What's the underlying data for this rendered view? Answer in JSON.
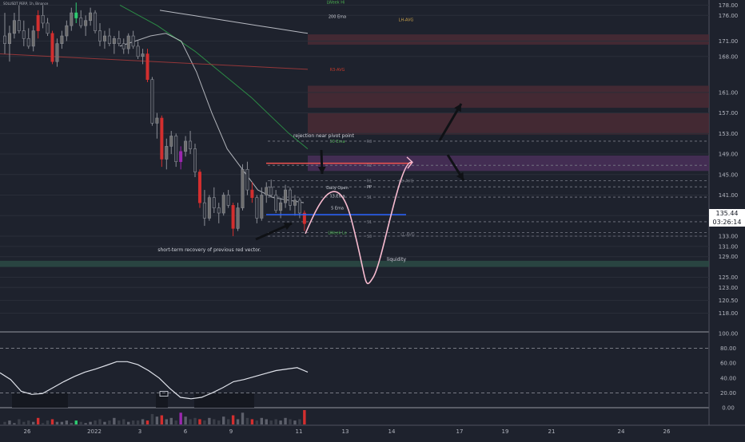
{
  "header": {
    "symbol_line": "SOLUSDT PERP, 1h, Binance"
  },
  "price_tag": {
    "price": "135.44",
    "countdown": "03:26:14"
  },
  "colors": {
    "background": "#1e222d",
    "bull_candle": "#6e6e6e",
    "bear_candle": "#d32f2f",
    "vector_green": "#2ecc71",
    "vector_purple": "#9c27b0",
    "ema200": "#d1d4dc",
    "ema50": "#2e9e4a",
    "ema5_line": "#2962ff",
    "pivot_line": "#ef5350",
    "projection": "#f8bbd0",
    "liquidity_zone": "#2c4a45",
    "resistance_zone": "#4a2a35",
    "pivot_zone": "#4a2f5a"
  },
  "chart_data": [
    {
      "type": "candlestick",
      "title": "SOLUSDT PERP, 1h, Binance",
      "ylim": [
        114.5,
        179
      ],
      "price_ticks": [
        "178.00",
        "176.00",
        "171.00",
        "168.00",
        "161.00",
        "157.00",
        "153.00",
        "149.00",
        "145.00",
        "141.00",
        "137.00",
        "133.00",
        "131.00",
        "129.00",
        "125.00",
        "123.00",
        "120.50",
        "118.00"
      ],
      "date_ticks": [
        "26",
        "2022",
        "3",
        "6",
        "9",
        "11",
        "13",
        "14",
        "17",
        "19",
        "21",
        "24",
        "26"
      ],
      "last_price": 135.44,
      "candles": [
        [
          172,
          176.5,
          168.5,
          170.5
        ],
        [
          170.5,
          174,
          167,
          172.5
        ],
        [
          172.5,
          176.5,
          171.5,
          175
        ],
        [
          175,
          178,
          172.5,
          173
        ],
        [
          173,
          175,
          170,
          171.5
        ],
        [
          171.5,
          173.5,
          169.5,
          170
        ],
        [
          170,
          174,
          169,
          173
        ],
        [
          173,
          177,
          171.5,
          176
        ],
        [
          176,
          178,
          173.5,
          174.5
        ],
        [
          174.5,
          175.5,
          172,
          172.5
        ],
        [
          172.5,
          173,
          166.5,
          167
        ],
        [
          167,
          171.5,
          166,
          170.5
        ],
        [
          170.5,
          173,
          169.5,
          172
        ],
        [
          172,
          175,
          171,
          174
        ],
        [
          174,
          177.5,
          173,
          176.5
        ],
        [
          176.5,
          178.5,
          174.5,
          175.5
        ],
        [
          175.5,
          177,
          173.5,
          174
        ],
        [
          174,
          176,
          172,
          175
        ],
        [
          175,
          177.5,
          174,
          176.5
        ],
        [
          176.5,
          177,
          172.5,
          173
        ],
        [
          173,
          174.5,
          170,
          171
        ],
        [
          171,
          173,
          169.5,
          172
        ],
        [
          172,
          173.5,
          170,
          170.5
        ],
        [
          170.5,
          172,
          168.5,
          171.5
        ],
        [
          171.5,
          173,
          170,
          170.5
        ],
        [
          170.5,
          171.5,
          168.5,
          169.5
        ],
        [
          169.5,
          172.5,
          168.5,
          172
        ],
        [
          172,
          173,
          169.5,
          170
        ],
        [
          170,
          171,
          167.5,
          168
        ],
        [
          168,
          169.5,
          166.5,
          168.5
        ],
        [
          168.5,
          169.5,
          163,
          163.5
        ],
        [
          163.5,
          164,
          154.5,
          155
        ],
        [
          155,
          157,
          152,
          156
        ],
        [
          156,
          156.5,
          146.5,
          148
        ],
        [
          148,
          152,
          146,
          150.5
        ],
        [
          150.5,
          153.5,
          149,
          152.5
        ],
        [
          152.5,
          153,
          146.5,
          147.5
        ],
        [
          147.5,
          150.5,
          146,
          149.5
        ],
        [
          149.5,
          152.5,
          148.5,
          151.5
        ],
        [
          151.5,
          153.5,
          149,
          150
        ],
        [
          150,
          151,
          144.5,
          145.5
        ],
        [
          145.5,
          146,
          138.5,
          139.5
        ],
        [
          139.5,
          142,
          135,
          136.5
        ],
        [
          136.5,
          141,
          136,
          140.5
        ],
        [
          140.5,
          142.5,
          137.5,
          138.5
        ],
        [
          138.5,
          139.5,
          135.5,
          137.5
        ],
        [
          137.5,
          141.5,
          137,
          141
        ],
        [
          141,
          142,
          138.5,
          139
        ],
        [
          139,
          139.5,
          133,
          134.5
        ],
        [
          134.5,
          139.5,
          134,
          138.5
        ],
        [
          138.5,
          147,
          138,
          146
        ],
        [
          146,
          147.5,
          141,
          142
        ],
        [
          142,
          143.5,
          139.5,
          140.5
        ],
        [
          140.5,
          141,
          135.5,
          136.5
        ],
        [
          136.5,
          142.5,
          136,
          141
        ],
        [
          141,
          143.5,
          139.5,
          142.5
        ],
        [
          142.5,
          144,
          140.5,
          141
        ],
        [
          141,
          142,
          137.5,
          138
        ],
        [
          138,
          140.5,
          136.5,
          139.5
        ],
        [
          139.5,
          143,
          138.5,
          142
        ],
        [
          142,
          142.5,
          138,
          139
        ],
        [
          139,
          141,
          137,
          140
        ],
        [
          140,
          140.5,
          136.5,
          137.5
        ],
        [
          137.5,
          138,
          134,
          135.44
        ]
      ],
      "vector_candles": {
        "green": [
          15
        ],
        "red": [
          7,
          10,
          30,
          33,
          41,
          48,
          52,
          63
        ],
        "purple": [
          37
        ]
      },
      "series": [
        {
          "name": "200 Ema",
          "values": [
            177,
            176.5,
            176,
            175.5,
            175,
            174.5,
            174,
            173.5,
            173,
            172.5
          ]
        },
        {
          "name": "50 Ema",
          "values": [
            178,
            176,
            174,
            171.5,
            169,
            166,
            163,
            160,
            156.5,
            153,
            150
          ]
        },
        {
          "name": "13 Ema",
          "values": [
            170,
            171,
            172,
            172.5,
            171,
            165,
            157,
            150,
            146,
            142,
            140.5,
            140,
            139.5
          ]
        },
        {
          "name": "5 Ema",
          "values": [
            136.5
          ]
        }
      ],
      "levels": [
        {
          "label": "LWeek Hi",
          "price": 178.6
        },
        {
          "label": "200 Ema",
          "price": 175.8
        },
        {
          "label": "LH-AVG",
          "price": 175.2
        },
        {
          "label": "R3-AVG",
          "price": 165.5
        },
        {
          "label": "50 Ema",
          "price": 151.5
        },
        {
          "label": "R3",
          "price": 151.5
        },
        {
          "label": "R2",
          "price": 146.8
        },
        {
          "label": "R1",
          "price": 143.8
        },
        {
          "label": "LD-AVG",
          "price": 143.8
        },
        {
          "label": "Daily Open",
          "price": 142.2
        },
        {
          "label": "13 Ema",
          "price": 141.5
        },
        {
          "label": "PP",
          "price": 142.6
        },
        {
          "label": "S1",
          "price": 140.6
        },
        {
          "label": "5 Ema",
          "price": 138.5
        },
        {
          "label": "S1",
          "price": 135.8
        },
        {
          "label": "LWeek Lo",
          "price": 133.7
        },
        {
          "label": "LL-AVG",
          "price": 133.4
        },
        {
          "label": "S3",
          "price": 133.0
        }
      ],
      "zones": [
        {
          "kind": "resistance",
          "from": 170.3,
          "to": 172.3
        },
        {
          "kind": "resistance",
          "from": 158.0,
          "to": 162.3
        },
        {
          "kind": "resistance",
          "from": 152.8,
          "to": 157.0
        },
        {
          "kind": "pivot",
          "from": 145.7,
          "to": 148.7
        },
        {
          "kind": "liquidity",
          "from": 127.0,
          "to": 128.2
        }
      ],
      "annotations": [
        "rejection near pivot point",
        "short-term recovery of previous red vector.",
        "liquidity"
      ]
    },
    {
      "type": "line",
      "title": "",
      "ylim": [
        0,
        100
      ],
      "ticks": [
        "100.00",
        "80.00",
        "60.00",
        "40.00",
        "20.00",
        "0.00"
      ],
      "reference_lines": [
        80,
        20
      ],
      "series": [
        {
          "name": "",
          "values": [
            47,
            38,
            22,
            18,
            19,
            27,
            35,
            42,
            48,
            52,
            57,
            62,
            62,
            58,
            50,
            40,
            26,
            14,
            12,
            14,
            20,
            27,
            35,
            38,
            42,
            46,
            50,
            52,
            54,
            48
          ]
        }
      ]
    },
    {
      "type": "bar",
      "title": "",
      "values": [
        2,
        3,
        1,
        4,
        2,
        3,
        2,
        5,
        1,
        3,
        4,
        2,
        2,
        3,
        1,
        3,
        2,
        1,
        2,
        3,
        4,
        2,
        3,
        5,
        3,
        4,
        2,
        3,
        3,
        4,
        3,
        8,
        6,
        7,
        4,
        5,
        3,
        9,
        6,
        4,
        5,
        4,
        3,
        5,
        4,
        3,
        6,
        4,
        7,
        4,
        9,
        5,
        4,
        3,
        5,
        4,
        3,
        4,
        3,
        5,
        4,
        3,
        4,
        11
      ]
    }
  ]
}
